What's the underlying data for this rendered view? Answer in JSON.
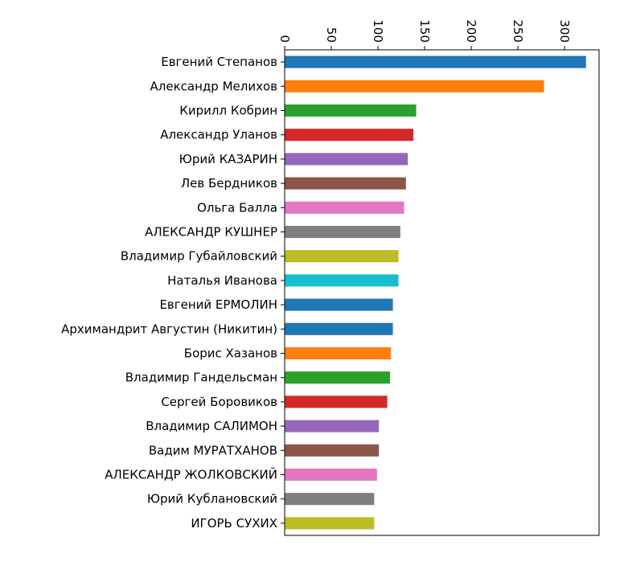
{
  "chart_data": {
    "type": "bar",
    "orientation": "horizontal",
    "x_axis_position": "top",
    "x_tick_label_rotation": "rotated",
    "grid": false,
    "legend": "none",
    "title": "",
    "xlabel": "",
    "ylabel": "",
    "xlim": [
      0,
      337
    ],
    "x_ticks": [
      0,
      50,
      100,
      150,
      200,
      250,
      300
    ],
    "x_tick_labels": [
      "0",
      "50",
      "100",
      "150",
      "200",
      "250",
      "300"
    ],
    "categories": [
      "Евгений Степанов",
      "Александр Мелихов",
      "Кирилл Кобрин",
      "Александр Уланов",
      "Юрий КАЗАРИН",
      "Лев Бердников",
      "Ольга Балла",
      "АЛЕКСАНДР КУШНЕР",
      "Владимир Губайловский",
      "Наталья Иванова",
      "Евгений ЕРМОЛИН",
      "Архимандрит Августин (Никитин)",
      "Борис Хазанов",
      "Владимир Гандельсман",
      "Сергей Боровиков",
      "Владимир САЛИМОН",
      "Вадим МУРАТХАНОВ",
      "АЛЕКСАНДР ЖОЛКОВСКИЙ",
      "Юрий Кублановский",
      "ИГОРЬ СУХИХ"
    ],
    "values": [
      323,
      278,
      141,
      138,
      132,
      130,
      128,
      124,
      122,
      122,
      116,
      116,
      114,
      113,
      110,
      101,
      101,
      99,
      96,
      96
    ],
    "colors": [
      "#1f77b4",
      "#ff7f0e",
      "#2ca02c",
      "#d62728",
      "#9467bd",
      "#8c564b",
      "#e377c2",
      "#7f7f7f",
      "#bcbd22",
      "#17becf",
      "#1f77b4",
      "#1f77b4",
      "#ff7f0e",
      "#2ca02c",
      "#d62728",
      "#9467bd",
      "#8c564b",
      "#e377c2",
      "#7f7f7f",
      "#bcbd22"
    ]
  }
}
